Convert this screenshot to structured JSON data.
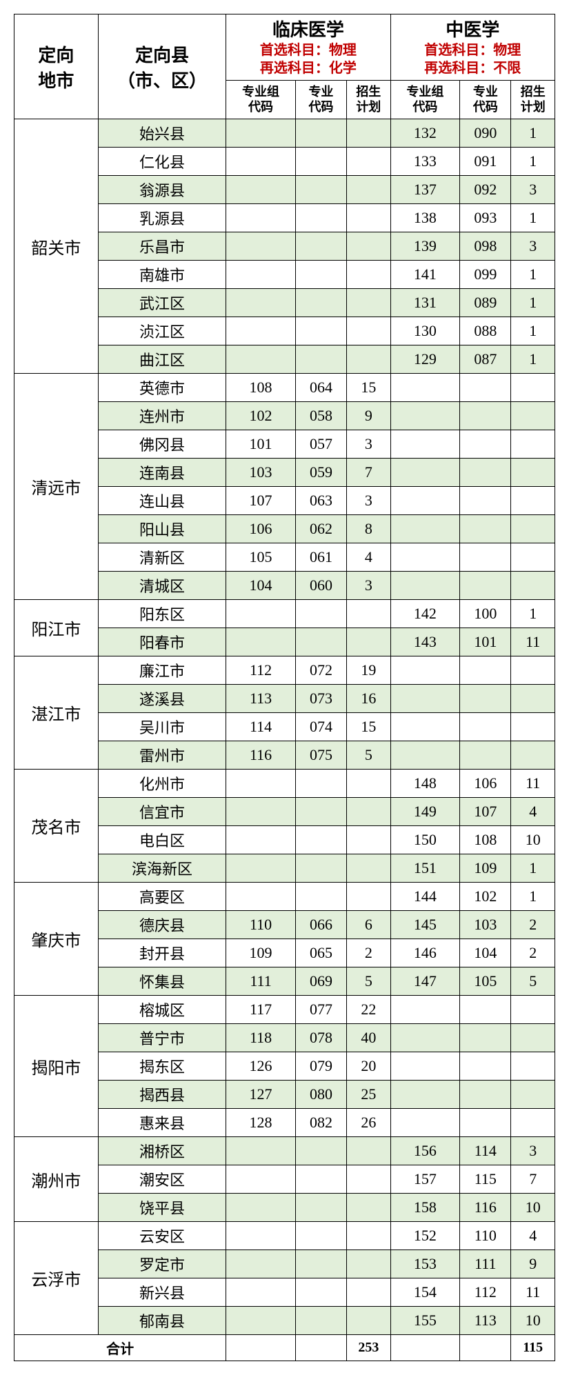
{
  "headers": {
    "city": "定向\n地市",
    "county": "定向县\n（市、区）",
    "major1": {
      "title": "临床医学",
      "primary": "首选科目：物理",
      "secondary": "再选科目：化学"
    },
    "major2": {
      "title": "中医学",
      "primary": "首选科目：物理",
      "secondary": "再选科目：不限"
    },
    "sub": {
      "group_code": "专业组\n代码",
      "major_code": "专业\n代码",
      "plan": "招生\n计划"
    }
  },
  "styling": {
    "odd_row_bg": "#e2efda",
    "even_row_bg": "#ffffff",
    "border_color": "#000000",
    "red_text": "#c00000",
    "header_main_fontsize": 26,
    "data_fontsize": 22,
    "col_widths": {
      "city": 115,
      "county": 175,
      "group_code": 95,
      "major_code": 70,
      "plan": 60
    }
  },
  "cities": [
    {
      "name": "韶关市",
      "rows": [
        {
          "county": "始兴县",
          "m1": [
            "",
            "",
            ""
          ],
          "m2": [
            "132",
            "090",
            "1"
          ],
          "odd": true
        },
        {
          "county": "仁化县",
          "m1": [
            "",
            "",
            ""
          ],
          "m2": [
            "133",
            "091",
            "1"
          ],
          "odd": false
        },
        {
          "county": "翁源县",
          "m1": [
            "",
            "",
            ""
          ],
          "m2": [
            "137",
            "092",
            "3"
          ],
          "odd": true
        },
        {
          "county": "乳源县",
          "m1": [
            "",
            "",
            ""
          ],
          "m2": [
            "138",
            "093",
            "1"
          ],
          "odd": false
        },
        {
          "county": "乐昌市",
          "m1": [
            "",
            "",
            ""
          ],
          "m2": [
            "139",
            "098",
            "3"
          ],
          "odd": true
        },
        {
          "county": "南雄市",
          "m1": [
            "",
            "",
            ""
          ],
          "m2": [
            "141",
            "099",
            "1"
          ],
          "odd": false
        },
        {
          "county": "武江区",
          "m1": [
            "",
            "",
            ""
          ],
          "m2": [
            "131",
            "089",
            "1"
          ],
          "odd": true
        },
        {
          "county": "浈江区",
          "m1": [
            "",
            "",
            ""
          ],
          "m2": [
            "130",
            "088",
            "1"
          ],
          "odd": false
        },
        {
          "county": "曲江区",
          "m1": [
            "",
            "",
            ""
          ],
          "m2": [
            "129",
            "087",
            "1"
          ],
          "odd": true
        }
      ]
    },
    {
      "name": "清远市",
      "rows": [
        {
          "county": "英德市",
          "m1": [
            "108",
            "064",
            "15"
          ],
          "m2": [
            "",
            "",
            ""
          ],
          "odd": false
        },
        {
          "county": "连州市",
          "m1": [
            "102",
            "058",
            "9"
          ],
          "m2": [
            "",
            "",
            ""
          ],
          "odd": true
        },
        {
          "county": "佛冈县",
          "m1": [
            "101",
            "057",
            "3"
          ],
          "m2": [
            "",
            "",
            ""
          ],
          "odd": false
        },
        {
          "county": "连南县",
          "m1": [
            "103",
            "059",
            "7"
          ],
          "m2": [
            "",
            "",
            ""
          ],
          "odd": true
        },
        {
          "county": "连山县",
          "m1": [
            "107",
            "063",
            "3"
          ],
          "m2": [
            "",
            "",
            ""
          ],
          "odd": false
        },
        {
          "county": "阳山县",
          "m1": [
            "106",
            "062",
            "8"
          ],
          "m2": [
            "",
            "",
            ""
          ],
          "odd": true
        },
        {
          "county": "清新区",
          "m1": [
            "105",
            "061",
            "4"
          ],
          "m2": [
            "",
            "",
            ""
          ],
          "odd": false
        },
        {
          "county": "清城区",
          "m1": [
            "104",
            "060",
            "3"
          ],
          "m2": [
            "",
            "",
            ""
          ],
          "odd": true
        }
      ]
    },
    {
      "name": "阳江市",
      "rows": [
        {
          "county": "阳东区",
          "m1": [
            "",
            "",
            ""
          ],
          "m2": [
            "142",
            "100",
            "1"
          ],
          "odd": false
        },
        {
          "county": "阳春市",
          "m1": [
            "",
            "",
            ""
          ],
          "m2": [
            "143",
            "101",
            "11"
          ],
          "odd": true
        }
      ]
    },
    {
      "name": "湛江市",
      "rows": [
        {
          "county": "廉江市",
          "m1": [
            "112",
            "072",
            "19"
          ],
          "m2": [
            "",
            "",
            ""
          ],
          "odd": false
        },
        {
          "county": "遂溪县",
          "m1": [
            "113",
            "073",
            "16"
          ],
          "m2": [
            "",
            "",
            ""
          ],
          "odd": true
        },
        {
          "county": "吴川市",
          "m1": [
            "114",
            "074",
            "15"
          ],
          "m2": [
            "",
            "",
            ""
          ],
          "odd": false
        },
        {
          "county": "雷州市",
          "m1": [
            "116",
            "075",
            "5"
          ],
          "m2": [
            "",
            "",
            ""
          ],
          "odd": true
        }
      ]
    },
    {
      "name": "茂名市",
      "rows": [
        {
          "county": "化州市",
          "m1": [
            "",
            "",
            ""
          ],
          "m2": [
            "148",
            "106",
            "11"
          ],
          "odd": false
        },
        {
          "county": "信宜市",
          "m1": [
            "",
            "",
            ""
          ],
          "m2": [
            "149",
            "107",
            "4"
          ],
          "odd": true
        },
        {
          "county": "电白区",
          "m1": [
            "",
            "",
            ""
          ],
          "m2": [
            "150",
            "108",
            "10"
          ],
          "odd": false
        },
        {
          "county": "滨海新区",
          "m1": [
            "",
            "",
            ""
          ],
          "m2": [
            "151",
            "109",
            "1"
          ],
          "odd": true
        }
      ]
    },
    {
      "name": "肇庆市",
      "rows": [
        {
          "county": "高要区",
          "m1": [
            "",
            "",
            ""
          ],
          "m2": [
            "144",
            "102",
            "1"
          ],
          "odd": false
        },
        {
          "county": "德庆县",
          "m1": [
            "110",
            "066",
            "6"
          ],
          "m2": [
            "145",
            "103",
            "2"
          ],
          "odd": true
        },
        {
          "county": "封开县",
          "m1": [
            "109",
            "065",
            "2"
          ],
          "m2": [
            "146",
            "104",
            "2"
          ],
          "odd": false
        },
        {
          "county": "怀集县",
          "m1": [
            "111",
            "069",
            "5"
          ],
          "m2": [
            "147",
            "105",
            "5"
          ],
          "odd": true
        }
      ]
    },
    {
      "name": "揭阳市",
      "rows": [
        {
          "county": "榕城区",
          "m1": [
            "117",
            "077",
            "22"
          ],
          "m2": [
            "",
            "",
            ""
          ],
          "odd": false
        },
        {
          "county": "普宁市",
          "m1": [
            "118",
            "078",
            "40"
          ],
          "m2": [
            "",
            "",
            ""
          ],
          "odd": true
        },
        {
          "county": "揭东区",
          "m1": [
            "126",
            "079",
            "20"
          ],
          "m2": [
            "",
            "",
            ""
          ],
          "odd": false
        },
        {
          "county": "揭西县",
          "m1": [
            "127",
            "080",
            "25"
          ],
          "m2": [
            "",
            "",
            ""
          ],
          "odd": true
        },
        {
          "county": "惠来县",
          "m1": [
            "128",
            "082",
            "26"
          ],
          "m2": [
            "",
            "",
            ""
          ],
          "odd": false
        }
      ]
    },
    {
      "name": "潮州市",
      "rows": [
        {
          "county": "湘桥区",
          "m1": [
            "",
            "",
            ""
          ],
          "m2": [
            "156",
            "114",
            "3"
          ],
          "odd": true
        },
        {
          "county": "潮安区",
          "m1": [
            "",
            "",
            ""
          ],
          "m2": [
            "157",
            "115",
            "7"
          ],
          "odd": false
        },
        {
          "county": "饶平县",
          "m1": [
            "",
            "",
            ""
          ],
          "m2": [
            "158",
            "116",
            "10"
          ],
          "odd": true
        }
      ]
    },
    {
      "name": "云浮市",
      "rows": [
        {
          "county": "云安区",
          "m1": [
            "",
            "",
            ""
          ],
          "m2": [
            "152",
            "110",
            "4"
          ],
          "odd": false
        },
        {
          "county": "罗定市",
          "m1": [
            "",
            "",
            ""
          ],
          "m2": [
            "153",
            "111",
            "9"
          ],
          "odd": true
        },
        {
          "county": "新兴县",
          "m1": [
            "",
            "",
            ""
          ],
          "m2": [
            "154",
            "112",
            "11"
          ],
          "odd": false
        },
        {
          "county": "郁南县",
          "m1": [
            "",
            "",
            ""
          ],
          "m2": [
            "155",
            "113",
            "10"
          ],
          "odd": true
        }
      ]
    }
  ],
  "total": {
    "label": "合计",
    "m1_plan": "253",
    "m2_plan": "115"
  }
}
